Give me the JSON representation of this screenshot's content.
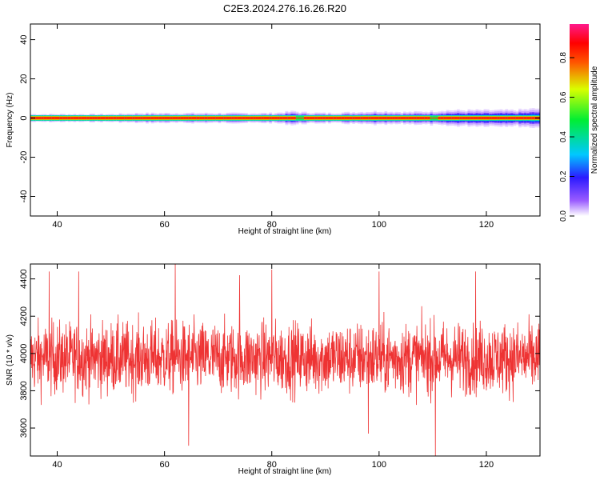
{
  "title": "C2E3.2024.276.16.26.R20",
  "chart_data": [
    {
      "type": "heatmap",
      "xlabel": "Height of straight line (km)",
      "ylabel": "Frequency (Hz)",
      "xlim": [
        35,
        130
      ],
      "ylim": [
        -50,
        48
      ],
      "xticks": [
        40,
        60,
        80,
        100,
        120
      ],
      "yticks": [
        -40,
        -20,
        0,
        20,
        40
      ],
      "band": {
        "center_frequency": 0,
        "core_halfwidth": 0.6,
        "outer_halfwidth": [
          [
            35,
            2
          ],
          [
            40,
            2
          ],
          [
            45,
            2
          ],
          [
            50,
            2
          ],
          [
            55,
            2.5
          ],
          [
            60,
            2.5
          ],
          [
            65,
            2.5
          ],
          [
            70,
            2.5
          ],
          [
            75,
            2.5
          ],
          [
            80,
            2.5
          ],
          [
            84,
            3.5
          ],
          [
            85,
            3
          ],
          [
            90,
            2.5
          ],
          [
            95,
            3
          ],
          [
            100,
            3.5
          ],
          [
            105,
            3
          ],
          [
            110,
            3.5
          ],
          [
            112,
            4
          ],
          [
            115,
            4
          ],
          [
            120,
            4
          ],
          [
            125,
            4
          ],
          [
            130,
            5
          ]
        ],
        "weak_spots": [
          85,
          110
        ]
      },
      "colorbar": {
        "label": "Normalized spectral amplitude",
        "ticks": [
          0.0,
          0.2,
          0.4,
          0.6,
          0.8
        ],
        "range": [
          0,
          0.97
        ]
      },
      "grid": false
    },
    {
      "type": "line",
      "xlabel": "Height of straight line (km)",
      "ylabel": "SNR (10 * v/v)",
      "xlim": [
        35,
        130
      ],
      "ylim": [
        3450,
        4480
      ],
      "xticks": [
        40,
        60,
        80,
        100,
        120
      ],
      "yticks": [
        3600,
        3800,
        4000,
        4200,
        4400
      ],
      "color": "#ee3333",
      "series": [
        {
          "x_start": 35,
          "x_end": 130,
          "mean": 3975,
          "spread": 95,
          "points": 1900,
          "notable_peaks": [
            [
              38.5,
              4440
            ],
            [
              44,
              4440
            ],
            [
              62,
              4480
            ],
            [
              74,
              4420
            ],
            [
              80,
              4450
            ],
            [
              100,
              4440
            ],
            [
              118,
              4440
            ]
          ],
          "notable_troughs": [
            [
              64.5,
              3505
            ],
            [
              98,
              3570
            ],
            [
              110.5,
              3450
            ]
          ]
        }
      ],
      "grid": false
    }
  ]
}
